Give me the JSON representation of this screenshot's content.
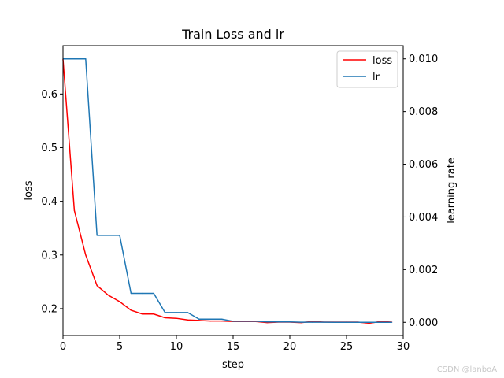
{
  "chart_data": {
    "type": "line",
    "title": "Train Loss and lr",
    "xlabel": "step",
    "ylabel_left": "loss",
    "ylabel_right": "learning rate",
    "xlim": [
      0,
      30
    ],
    "ylim_left": [
      0.15,
      0.69
    ],
    "ylim_right": [
      -0.0005,
      0.0105
    ],
    "x_ticks": [
      0,
      5,
      10,
      15,
      20,
      25,
      30
    ],
    "y_ticks_left": [
      0.2,
      0.3,
      0.4,
      0.5,
      0.6
    ],
    "y_ticks_right": [
      0.0,
      0.002,
      0.004,
      0.006,
      0.008,
      0.01
    ],
    "x_tick_labels": [
      "0",
      "5",
      "10",
      "15",
      "20",
      "25",
      "30"
    ],
    "y_tick_labels_left": [
      "0.2",
      "0.3",
      "0.4",
      "0.5",
      "0.6"
    ],
    "y_tick_labels_right": [
      "0.000",
      "0.002",
      "0.004",
      "0.006",
      "0.008",
      "0.010"
    ],
    "legend_position": "top-right",
    "grid": false,
    "series": [
      {
        "name": "loss",
        "axis": "left",
        "color": "#ff0000",
        "x": [
          0,
          1,
          2,
          3,
          4,
          5,
          6,
          7,
          8,
          9,
          10,
          11,
          12,
          13,
          14,
          15,
          16,
          17,
          18,
          19,
          20,
          21,
          22,
          23,
          24,
          25,
          26,
          27,
          28,
          29
        ],
        "values": [
          0.665,
          0.383,
          0.3,
          0.243,
          0.225,
          0.213,
          0.197,
          0.19,
          0.19,
          0.183,
          0.182,
          0.179,
          0.178,
          0.177,
          0.177,
          0.176,
          0.176,
          0.176,
          0.174,
          0.175,
          0.175,
          0.174,
          0.176,
          0.175,
          0.175,
          0.175,
          0.175,
          0.173,
          0.176,
          0.175
        ]
      },
      {
        "name": "lr",
        "axis": "right",
        "color": "#1f77b4",
        "x": [
          0,
          1,
          2,
          3,
          4,
          5,
          6,
          7,
          8,
          9,
          10,
          11,
          12,
          13,
          14,
          15,
          16,
          17,
          18,
          19,
          20,
          21,
          22,
          23,
          24,
          25,
          26,
          27,
          28,
          29
        ],
        "values": [
          0.01,
          0.01,
          0.01,
          0.0033,
          0.0033,
          0.0033,
          0.0011,
          0.0011,
          0.0011,
          0.00037,
          0.00037,
          0.00037,
          0.00012,
          0.00012,
          0.00012,
          4e-05,
          4e-05,
          4e-05,
          1.4e-05,
          1.4e-05,
          1.4e-05,
          5e-06,
          5e-06,
          5e-06,
          2e-06,
          2e-06,
          2e-06,
          1e-06,
          1e-06,
          1e-06
        ]
      }
    ]
  },
  "watermark": "CSDN @lanboAI"
}
